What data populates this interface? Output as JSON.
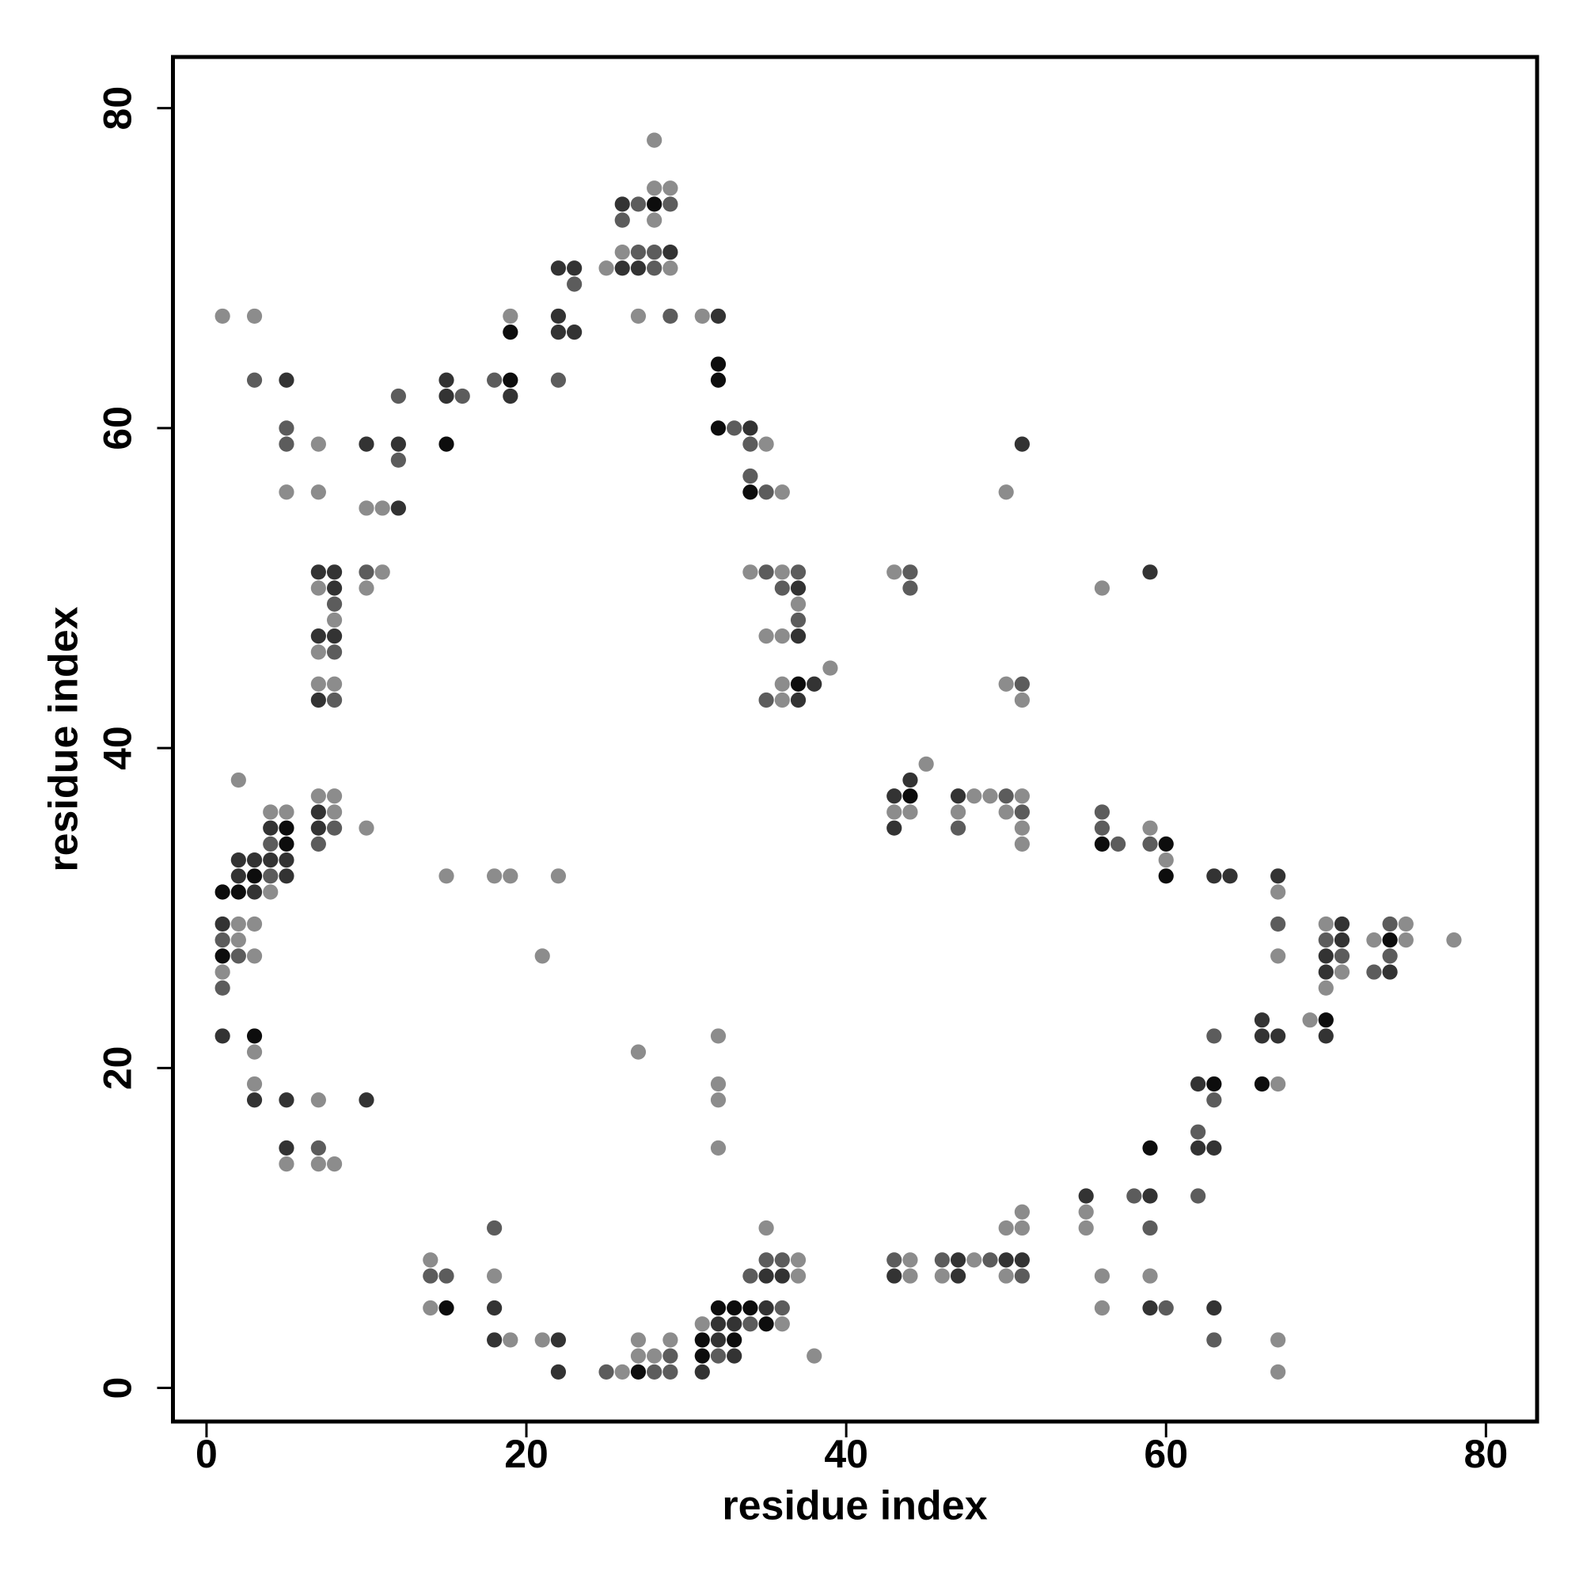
{
  "chart_data": {
    "type": "scatter",
    "xlabel": "residue index",
    "ylabel": "residue index",
    "xlim": [
      -2.1,
      83.2
    ],
    "ylim": [
      -2.1,
      83.2
    ],
    "xticks": [
      0,
      20,
      40,
      60,
      80
    ],
    "yticks": [
      0,
      20,
      40,
      60,
      80
    ],
    "series": [
      {
        "color": "#0d0d0d",
        "x": [
          28,
          19,
          32,
          19,
          32,
          32,
          15,
          34,
          37,
          44,
          5,
          5,
          56,
          60,
          3,
          60,
          1,
          2,
          1,
          74,
          70,
          3,
          63,
          66,
          59,
          15,
          32,
          33,
          34,
          35,
          31,
          33,
          31,
          27
        ],
        "values": [
          74,
          66,
          64,
          63,
          63,
          60,
          59,
          56,
          44,
          37,
          35,
          34,
          34,
          34,
          32,
          32,
          31,
          31,
          27,
          28,
          23,
          22,
          19,
          19,
          15,
          5,
          5,
          5,
          5,
          4,
          3,
          3,
          2,
          1
        ]
      },
      {
        "color": "#333333",
        "x": [
          26,
          29,
          22,
          23,
          26,
          27,
          22,
          32,
          22,
          23,
          5,
          15,
          15,
          19,
          34,
          10,
          12,
          51,
          12,
          7,
          8,
          59,
          8,
          37,
          7,
          8,
          37,
          7,
          37,
          38,
          44,
          43,
          47,
          7,
          4,
          7,
          43,
          2,
          3,
          4,
          5,
          2,
          5,
          63,
          64,
          67,
          3,
          1,
          71,
          71,
          70,
          70,
          74,
          66,
          1,
          66,
          67,
          70,
          62,
          3,
          5,
          10,
          5,
          62,
          63,
          55,
          59,
          47,
          50,
          51,
          35,
          36,
          43,
          47,
          18,
          35,
          59,
          63,
          32,
          33,
          18,
          22,
          32,
          33,
          22,
          31
        ],
        "values": [
          74,
          71,
          70,
          70,
          70,
          70,
          67,
          67,
          66,
          66,
          63,
          63,
          62,
          62,
          60,
          59,
          59,
          59,
          55,
          51,
          51,
          51,
          50,
          50,
          47,
          47,
          47,
          43,
          43,
          44,
          38,
          37,
          37,
          36,
          35,
          35,
          35,
          33,
          33,
          33,
          33,
          32,
          32,
          32,
          32,
          32,
          31,
          29,
          29,
          28,
          27,
          26,
          26,
          23,
          22,
          22,
          22,
          22,
          19,
          18,
          18,
          18,
          15,
          15,
          15,
          12,
          12,
          8,
          8,
          8,
          7,
          7,
          7,
          7,
          5,
          5,
          5,
          5,
          4,
          4,
          3,
          3,
          3,
          2,
          1,
          1
        ]
      },
      {
        "color": "#5c5c5c",
        "x": [
          27,
          29,
          26,
          27,
          28,
          28,
          23,
          29,
          3,
          18,
          22,
          12,
          16,
          5,
          33,
          5,
          34,
          12,
          34,
          35,
          10,
          35,
          37,
          44,
          36,
          44,
          8,
          37,
          8,
          51,
          8,
          35,
          50,
          51,
          56,
          8,
          47,
          56,
          4,
          7,
          57,
          59,
          4,
          67,
          74,
          1,
          70,
          2,
          71,
          74,
          73,
          1,
          63,
          63,
          62,
          7,
          58,
          62,
          18,
          59,
          35,
          36,
          43,
          46,
          49,
          14,
          15,
          34,
          51,
          36,
          60,
          34,
          63,
          29,
          32,
          25,
          28,
          29
        ],
        "values": [
          74,
          74,
          73,
          71,
          71,
          70,
          69,
          67,
          63,
          63,
          63,
          62,
          62,
          60,
          60,
          59,
          59,
          58,
          57,
          56,
          51,
          51,
          51,
          51,
          50,
          50,
          49,
          48,
          46,
          44,
          43,
          43,
          37,
          36,
          36,
          35,
          35,
          35,
          34,
          34,
          34,
          34,
          32,
          29,
          29,
          28,
          28,
          27,
          27,
          27,
          26,
          25,
          22,
          18,
          16,
          15,
          12,
          12,
          10,
          10,
          8,
          8,
          8,
          8,
          8,
          7,
          7,
          7,
          7,
          5,
          5,
          4,
          3,
          2,
          2,
          1,
          1,
          1
        ]
      },
      {
        "color": "#8c8c8c",
        "x": [
          28,
          28,
          29,
          28,
          26,
          25,
          29,
          1,
          3,
          19,
          27,
          31,
          7,
          35,
          5,
          7,
          36,
          50,
          10,
          11,
          11,
          34,
          36,
          43,
          7,
          10,
          56,
          37,
          8,
          35,
          36,
          7,
          39,
          7,
          8,
          36,
          50,
          36,
          51,
          45,
          2,
          7,
          8,
          48,
          49,
          51,
          4,
          5,
          8,
          43,
          44,
          47,
          50,
          10,
          51,
          59,
          51,
          60,
          15,
          18,
          19,
          22,
          4,
          67,
          2,
          3,
          70,
          75,
          2,
          73,
          75,
          78,
          3,
          21,
          67,
          1,
          71,
          70,
          69,
          32,
          3,
          27,
          3,
          32,
          67,
          7,
          32,
          32,
          5,
          7,
          8,
          51,
          55,
          35,
          50,
          51,
          55,
          14,
          37,
          44,
          48,
          18,
          37,
          44,
          46,
          50,
          56,
          59,
          14,
          56,
          31,
          36,
          19,
          21,
          27,
          29,
          67,
          27,
          28,
          38,
          26,
          67
        ],
        "values": [
          78,
          75,
          75,
          73,
          71,
          70,
          70,
          67,
          67,
          67,
          67,
          67,
          59,
          59,
          56,
          56,
          56,
          56,
          55,
          55,
          51,
          51,
          51,
          51,
          50,
          50,
          50,
          49,
          48,
          47,
          47,
          46,
          45,
          44,
          44,
          44,
          44,
          43,
          43,
          39,
          38,
          37,
          37,
          37,
          37,
          37,
          36,
          36,
          36,
          36,
          36,
          36,
          36,
          35,
          35,
          35,
          34,
          33,
          32,
          32,
          32,
          32,
          31,
          31,
          29,
          29,
          29,
          29,
          28,
          28,
          28,
          28,
          27,
          27,
          27,
          26,
          26,
          25,
          23,
          22,
          21,
          21,
          19,
          19,
          19,
          18,
          18,
          15,
          14,
          14,
          14,
          11,
          11,
          10,
          10,
          10,
          10,
          8,
          8,
          8,
          8,
          7,
          7,
          7,
          7,
          7,
          7,
          7,
          5,
          5,
          4,
          4,
          3,
          3,
          3,
          3,
          3,
          2,
          2,
          2,
          1,
          1
        ]
      }
    ]
  }
}
